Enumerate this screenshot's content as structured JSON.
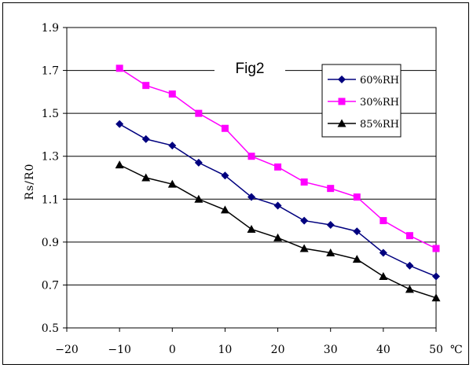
{
  "chart_data": {
    "type": "line",
    "title": "Fig2",
    "xlabel": "",
    "ylabel": "Rs/R0",
    "x_unit": "℃",
    "xlim": [
      -20,
      50
    ],
    "ylim": [
      0.5,
      1.9
    ],
    "xticks": [
      -20,
      -10,
      0,
      10,
      20,
      30,
      40,
      50
    ],
    "yticks": [
      0.5,
      0.7,
      0.9,
      1.1,
      1.3,
      1.5,
      1.7,
      1.9
    ],
    "ytick_labels": [
      "0.5",
      "0.7",
      "0.9",
      "1.1",
      "1.3",
      "1.5",
      "1.7",
      "1.9"
    ],
    "grid": "horizontal",
    "legend_position": "top-right",
    "x": [
      -10,
      -5,
      0,
      5,
      10,
      15,
      20,
      25,
      30,
      35,
      40,
      45,
      50
    ],
    "series": [
      {
        "name": "60%RH",
        "color": "#00007f",
        "marker": "diamond",
        "values": [
          1.45,
          1.38,
          1.35,
          1.27,
          1.21,
          1.11,
          1.07,
          1.0,
          0.98,
          0.95,
          0.85,
          0.79,
          0.74
        ]
      },
      {
        "name": "30%RH",
        "color": "#ff00ff",
        "marker": "square",
        "values": [
          1.71,
          1.63,
          1.59,
          1.5,
          1.43,
          1.3,
          1.25,
          1.18,
          1.15,
          1.11,
          1.0,
          0.93,
          0.87
        ]
      },
      {
        "name": "85%RH",
        "color": "#000000",
        "marker": "triangle",
        "values": [
          1.26,
          1.2,
          1.17,
          1.1,
          1.05,
          0.96,
          0.92,
          0.87,
          0.85,
          0.82,
          0.74,
          0.68,
          0.64
        ]
      }
    ]
  }
}
